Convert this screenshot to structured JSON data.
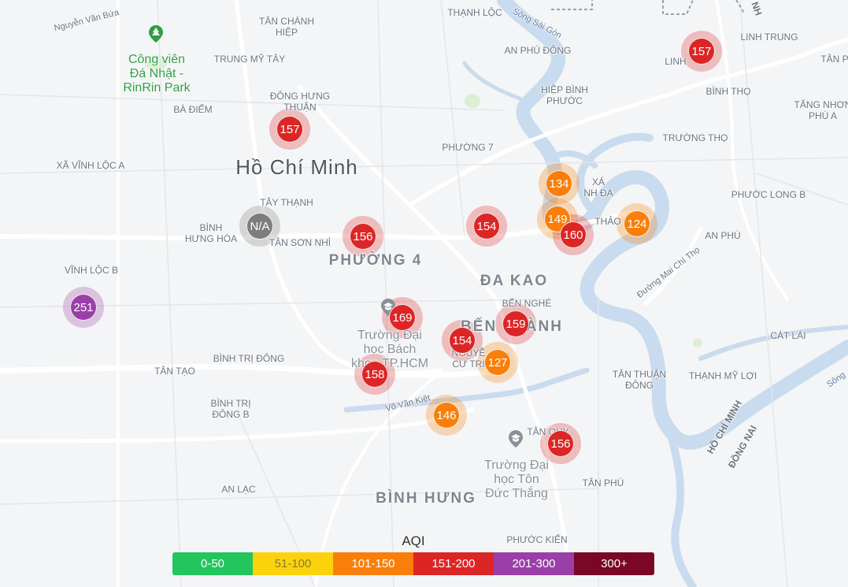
{
  "colors": {
    "good": "#22c55e",
    "moderate": "#fbd30c",
    "usg": "#f97f0a",
    "unhealthy": "#dc2626",
    "very_unhealthy": "#9b3fa8",
    "hazardous": "#7a0726",
    "no_data": "#7d7d7d",
    "river": "#c9dbee",
    "road": "#ffffff",
    "park": "#dcefd6"
  },
  "map": {
    "city_label": "Hồ Chí Minh",
    "areas": [
      {
        "key": "nguyen-van-bua",
        "text": "Nguyễn Văn Bứa",
        "style": "road"
      },
      {
        "key": "tan-chanh-hiep",
        "text": "TÂN CHÁNH\nHIỆP",
        "style": ""
      },
      {
        "key": "thanh-loc",
        "text": "THẠNH LỘC",
        "style": ""
      },
      {
        "key": "an-phu-dong",
        "text": "AN PHÚ ĐÔNG",
        "style": ""
      },
      {
        "key": "linh-trung",
        "text": "LINH TRUNG",
        "style": ""
      },
      {
        "key": "tan-right-top",
        "text": "TÂN P",
        "style": ""
      },
      {
        "key": "trung-my-tay",
        "text": "TRUNG MỸ TÂY",
        "style": ""
      },
      {
        "key": "ba-diem",
        "text": "BÀ ĐIỂM",
        "style": ""
      },
      {
        "key": "dong-hung-thuan",
        "text": "ĐÔNG HƯNG\nTHUẬN",
        "style": ""
      },
      {
        "key": "hiep-binh-phuoc",
        "text": "HIỆP BÌNH\nPHƯỚC",
        "style": ""
      },
      {
        "key": "binh-tho",
        "text": "BÌNH THỌ",
        "style": ""
      },
      {
        "key": "tang-nhon-phu-a",
        "text": "TĂNG NHƠN\nPHÚ A",
        "style": ""
      },
      {
        "key": "linh-partial",
        "text": "LINH",
        "style": ""
      },
      {
        "key": "phuong-7",
        "text": "PHƯỜNG 7",
        "style": ""
      },
      {
        "key": "truong-tho",
        "text": "TRƯỜNG THỌ",
        "style": ""
      },
      {
        "key": "xa-vinh-loc-a",
        "text": "XÃ VĨNH LỘC A",
        "style": ""
      },
      {
        "key": "tay-thanh",
        "text": "TÂY THẠNH",
        "style": ""
      },
      {
        "key": "thu-xa-thanh-da",
        "text": "XÁ\nNH ĐA",
        "style": ""
      },
      {
        "key": "phuoc-long-b",
        "text": "PHƯỚC LONG B",
        "style": ""
      },
      {
        "key": "binh-hung-hoa",
        "text": "BÌNH\nHƯNG HÒA",
        "style": ""
      },
      {
        "key": "tan-son-nhi",
        "text": "TÂN SƠN NHÌ",
        "style": ""
      },
      {
        "key": "thao",
        "text": "THẢO",
        "style": ""
      },
      {
        "key": "an-phu",
        "text": "AN PHÚ",
        "style": ""
      },
      {
        "key": "phuong-4",
        "text": "PHƯỜNG 4",
        "style": "big"
      },
      {
        "key": "da-kao",
        "text": "ĐA KAO",
        "style": "big"
      },
      {
        "key": "vinh-loc-b",
        "text": "VĨNH LỘC B",
        "style": ""
      },
      {
        "key": "ben-nghe",
        "text": "BẾN NGHÉ",
        "style": ""
      },
      {
        "key": "ben-thanh",
        "text": "BẾN THÀNH",
        "style": "big"
      },
      {
        "key": "cat-lai",
        "text": "CÁT LÁI",
        "style": ""
      },
      {
        "key": "binh-tri-dong",
        "text": "BÌNH TRỊ ĐÔNG",
        "style": ""
      },
      {
        "key": "tan-tao",
        "text": "TÂN TẠO",
        "style": ""
      },
      {
        "key": "nguyen-cu-trinh",
        "text": "NGUYỄ\nCƯ TRI",
        "style": ""
      },
      {
        "key": "tan-thuan-dong",
        "text": "TÂN THUẬN\nĐÔNG",
        "style": ""
      },
      {
        "key": "thanh-my-loi",
        "text": "THẠNH MỸ LỢI",
        "style": ""
      },
      {
        "key": "binh-tri-dong-b",
        "text": "BÌNH TRỊ\nĐÔNG B",
        "style": ""
      },
      {
        "key": "vo-van-kiet",
        "text": "Võ Văn Kiệt",
        "style": "road"
      },
      {
        "key": "tan-quy",
        "text": "TÂN QUY",
        "style": ""
      },
      {
        "key": "an-lac",
        "text": "AN LẠC",
        "style": ""
      },
      {
        "key": "tan-phu",
        "text": "TÂN PHÚ",
        "style": ""
      },
      {
        "key": "binh-hung",
        "text": "BÌNH HƯNG",
        "style": "big"
      },
      {
        "key": "phuoc-kien",
        "text": "PHƯỚC KIỂN",
        "style": ""
      },
      {
        "key": "duong-mai-chi-tho",
        "text": "Đường Mai Chí Thọ",
        "style": "road"
      },
      {
        "key": "song-sai-gon",
        "text": "Sông Sài Gòn",
        "style": "river"
      },
      {
        "key": "song-right",
        "text": "Sông",
        "style": "river"
      },
      {
        "key": "ho-chi-minh-border",
        "text": "HỒ CHÍ MINH",
        "style": "bold"
      },
      {
        "key": "dong-nai-border",
        "text": "ĐỒNG NAI",
        "style": "bold"
      },
      {
        "key": "nh-border",
        "text": "NH",
        "style": "bold"
      }
    ],
    "pois": [
      {
        "key": "park-rinrin",
        "text": "Công viên\nĐá Nhật -\nRinRin Park",
        "icon": "park-icon",
        "style": "poi-green"
      },
      {
        "key": "bach-khoa",
        "text": "Trường Đại\nhọc Bách\nkhoa TP.HCM",
        "icon": "school-icon",
        "style": "poi-grey"
      },
      {
        "key": "ton-duc-thang",
        "text": "Trường Đại\nhọc Tôn\nĐức Thắng",
        "icon": "school-icon",
        "style": "poi-grey"
      }
    ]
  },
  "stations": [
    {
      "aqi": "157",
      "category": "unhealthy"
    },
    {
      "aqi": "157",
      "category": "unhealthy"
    },
    {
      "aqi": "134",
      "category": "usg"
    },
    {
      "aqi": "149",
      "category": "usg"
    },
    {
      "aqi": "160",
      "category": "unhealthy"
    },
    {
      "aqi": "124",
      "category": "usg"
    },
    {
      "aqi": "N/A",
      "category": "no_data"
    },
    {
      "aqi": "156",
      "category": "unhealthy"
    },
    {
      "aqi": "154",
      "category": "unhealthy"
    },
    {
      "aqi": "251",
      "category": "very_unhealthy"
    },
    {
      "aqi": "169",
      "category": "unhealthy"
    },
    {
      "aqi": "159",
      "category": "unhealthy"
    },
    {
      "aqi": "154",
      "category": "unhealthy"
    },
    {
      "aqi": "127",
      "category": "usg"
    },
    {
      "aqi": "158",
      "category": "unhealthy"
    },
    {
      "aqi": "146",
      "category": "usg"
    },
    {
      "aqi": "156",
      "category": "unhealthy"
    }
  ],
  "legend": {
    "title": "AQI",
    "segments": [
      {
        "label": "0-50",
        "category": "good",
        "text_color": "#ffffff"
      },
      {
        "label": "51-100",
        "category": "moderate",
        "text_color": "#8a7a2a"
      },
      {
        "label": "101-150",
        "category": "usg",
        "text_color": "#ffffff"
      },
      {
        "label": "151-200",
        "category": "unhealthy",
        "text_color": "#ffffff"
      },
      {
        "label": "201-300",
        "category": "very_unhealthy",
        "text_color": "#ffffff"
      },
      {
        "label": "300+",
        "category": "hazardous",
        "text_color": "#ffffff"
      }
    ]
  }
}
